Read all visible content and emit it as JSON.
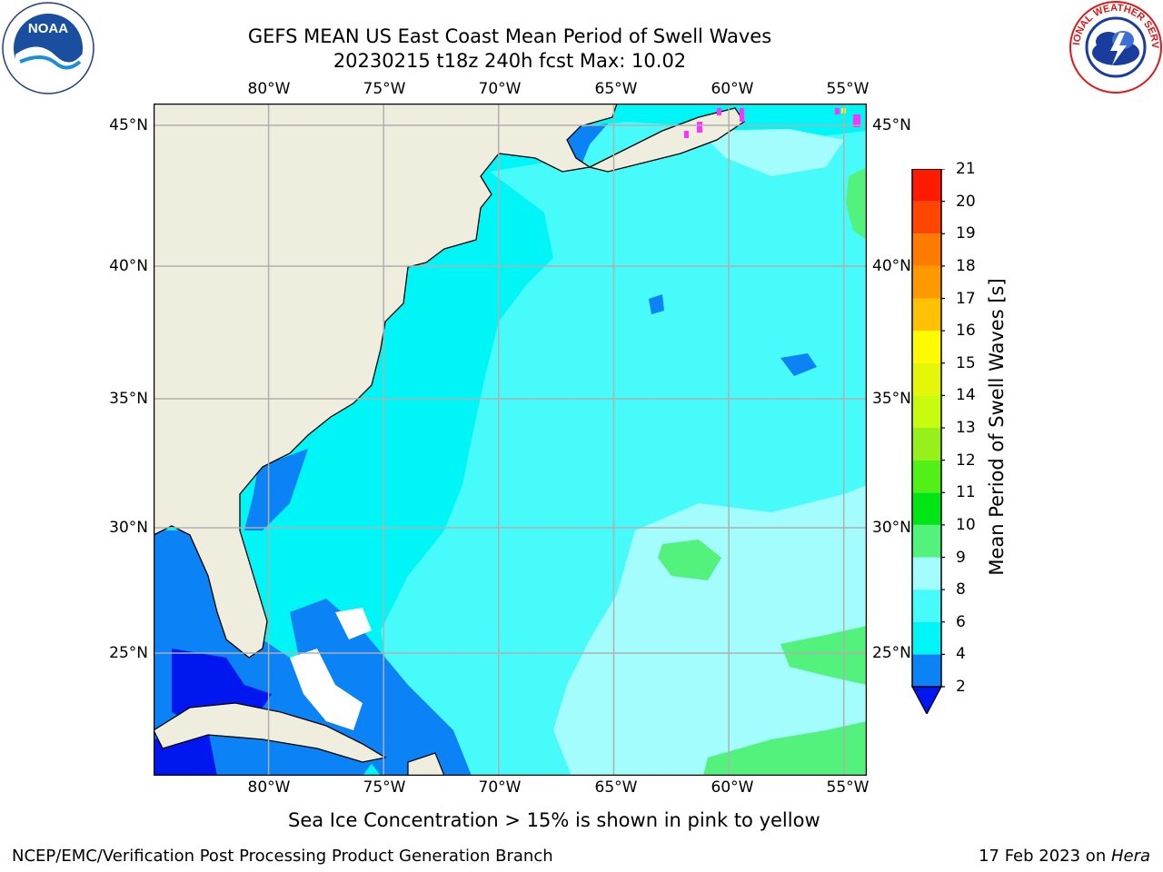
{
  "title": {
    "line1": "GEFS MEAN US East Coast Mean Period of Swell Waves",
    "line2": "20230215 t18z 240h fcst   Max: 10.02"
  },
  "logos": {
    "left": "NOAA",
    "right": "NATIONAL WEATHER SERVICE"
  },
  "map": {
    "lon_range": [
      -85,
      -54
    ],
    "lat_range": [
      20.5,
      46
    ],
    "lon_ticks": [
      "80°W",
      "75°W",
      "70°W",
      "65°W",
      "60°W",
      "55°W"
    ],
    "lat_ticks": [
      "45°N",
      "40°N",
      "35°N",
      "30°N",
      "25°N"
    ],
    "gridlines": true,
    "colors": {
      "land": "#efedde",
      "ocean_4_6": "#00f5f7",
      "ocean_6_8": "#46fbf9",
      "ocean_8_9": "#a3fdfd",
      "ocean_9_10": "#52f27c",
      "ocean_2_4": "#0b82f5",
      "ocean_lt2": "#0018f0",
      "ice": "#ff31ff"
    }
  },
  "colorbar": {
    "label": "Mean Period of Swell Waves [s]",
    "ticks": [
      "2",
      "4",
      "6",
      "8",
      "9",
      "10",
      "11",
      "12",
      "13",
      "14",
      "15",
      "16",
      "17",
      "18",
      "19",
      "20",
      "21"
    ],
    "colors": [
      "#0b82f5",
      "#00f5f7",
      "#46fbf9",
      "#a3fdfd",
      "#52f27c",
      "#00e515",
      "#52f016",
      "#98f01a",
      "#c8fc0e",
      "#e5f709",
      "#fffa00",
      "#fec103",
      "#ff9900",
      "#ff7b00",
      "#ff4600",
      "#ff1a00"
    ],
    "under_color": "#0018f0"
  },
  "footer": {
    "note": "Sea Ice Concentration > 15% is shown in pink to yellow",
    "credit": "NCEP/EMC/Verification Post Processing Product Generation Branch",
    "date_prefix": "17 Feb 2023 on ",
    "machine": "Hera"
  }
}
